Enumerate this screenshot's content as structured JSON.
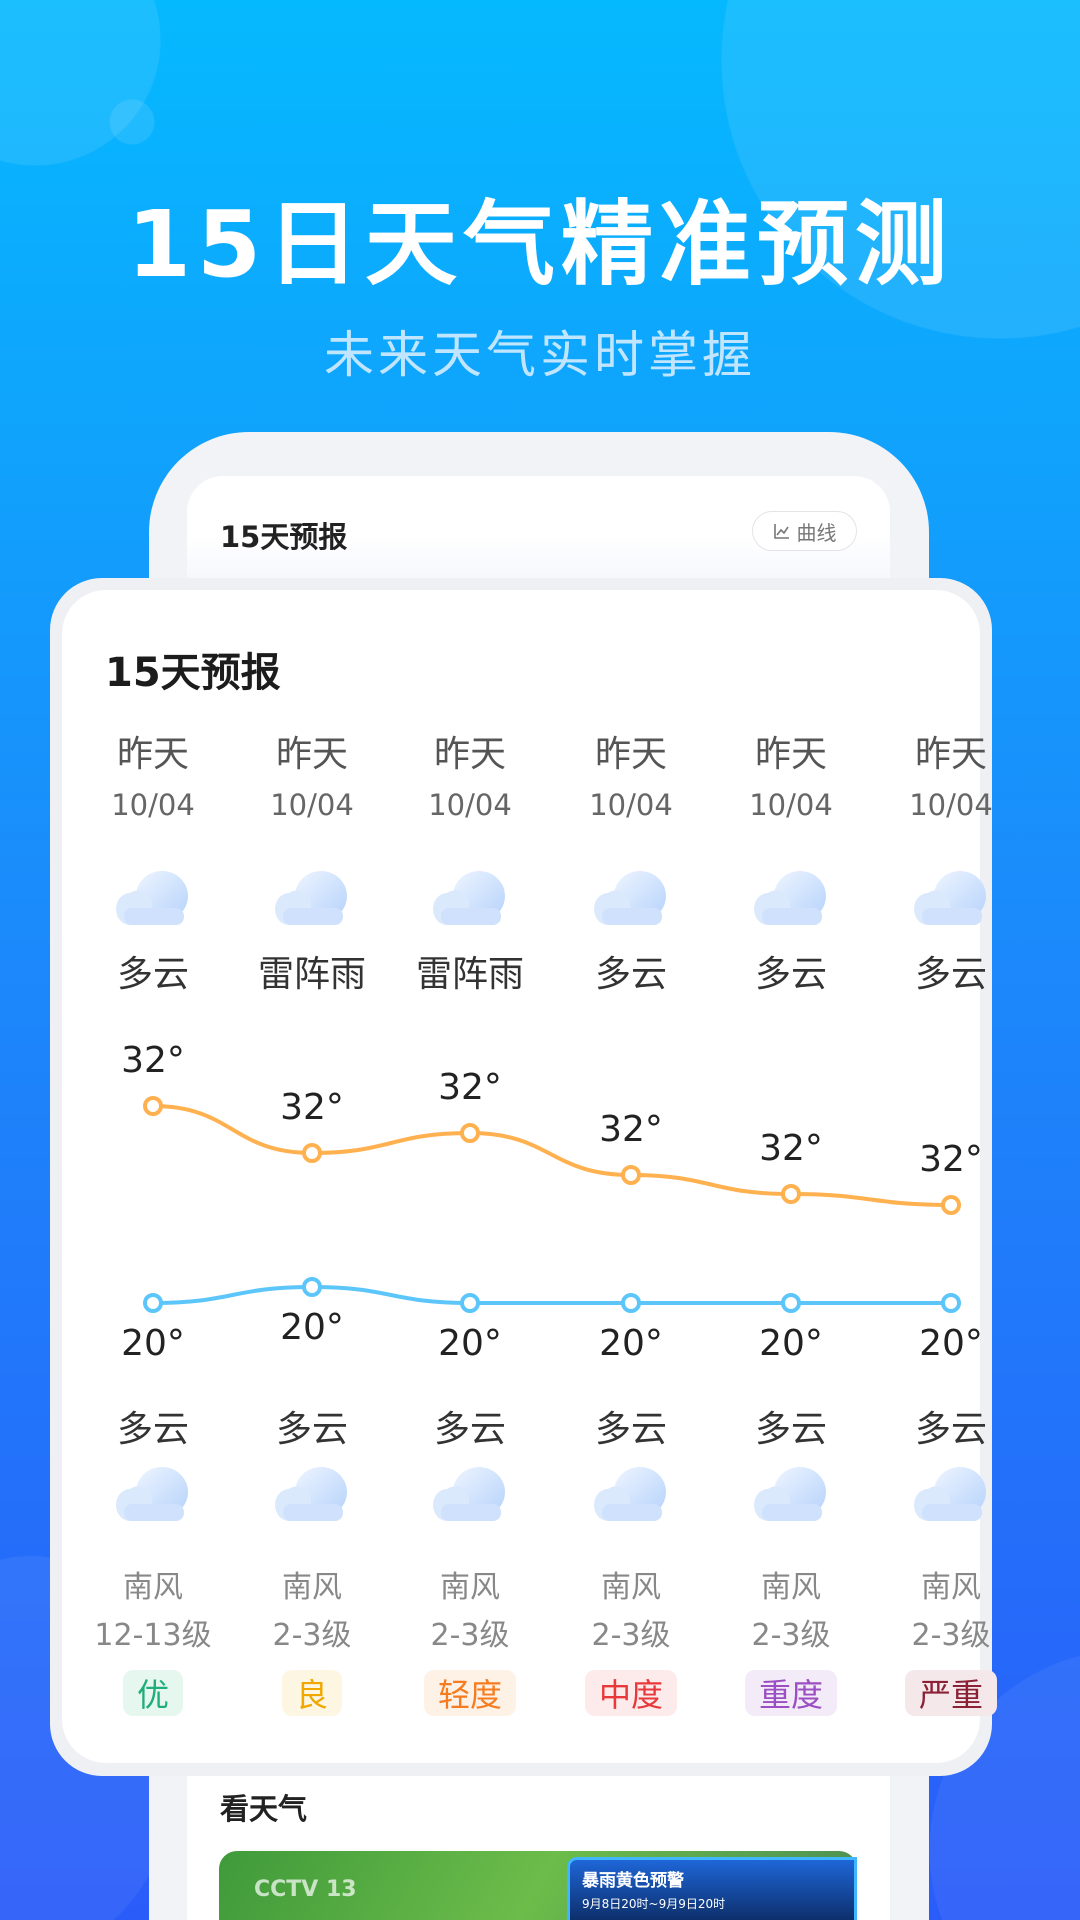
{
  "hero": {
    "title": "15日天气精准预测",
    "subtitle": "未来天气实时掌握"
  },
  "back_card": {
    "title": "15天预报",
    "curve_button": "曲线",
    "watch_title": "看天气",
    "video": {
      "channel": "CCTV 13",
      "banner_title": "暴雨黄色预警",
      "banner_time": "9月8日20时~9月9日20时"
    }
  },
  "forecast": {
    "title": "15天预报",
    "high_color": "#ffb04f",
    "low_color": "#5cc6fb",
    "days": [
      {
        "day": "昨天",
        "date": "10/04",
        "day_weather": "多云",
        "high": "32°",
        "low": "20°",
        "night_weather": "多云",
        "wind_dir": "南风",
        "wind_level": "12-13级",
        "aqi": "优",
        "aqi_color": "#1fae78",
        "aqi_bg": "#e6f7f0",
        "high_val": 32,
        "low_val": 20
      },
      {
        "day": "昨天",
        "date": "10/04",
        "day_weather": "雷阵雨",
        "high": "32°",
        "low": "20°",
        "night_weather": "多云",
        "wind_dir": "南风",
        "wind_level": "2-3级",
        "aqi": "良",
        "aqi_color": "#f0a800",
        "aqi_bg": "#fdf6e3",
        "high_val": 32,
        "low_val": 20
      },
      {
        "day": "昨天",
        "date": "10/04",
        "day_weather": "雷阵雨",
        "high": "32°",
        "low": "20°",
        "night_weather": "多云",
        "wind_dir": "南风",
        "wind_level": "2-3级",
        "aqi": "轻度",
        "aqi_color": "#f57c1f",
        "aqi_bg": "#fef1e6",
        "high_val": 32,
        "low_val": 20
      },
      {
        "day": "昨天",
        "date": "10/04",
        "day_weather": "多云",
        "high": "32°",
        "low": "20°",
        "night_weather": "多云",
        "wind_dir": "南风",
        "wind_level": "2-3级",
        "aqi": "中度",
        "aqi_color": "#e8383b",
        "aqi_bg": "#fdeaea",
        "high_val": 32,
        "low_val": 20
      },
      {
        "day": "昨天",
        "date": "10/04",
        "day_weather": "多云",
        "high": "32°",
        "low": "20°",
        "night_weather": "多云",
        "wind_dir": "南风",
        "wind_level": "2-3级",
        "aqi": "重度",
        "aqi_color": "#9b4fc2",
        "aqi_bg": "#f3ebf8",
        "high_val": 32,
        "low_val": 20
      },
      {
        "day": "昨天",
        "date": "10/04",
        "day_weather": "多云",
        "high": "32°",
        "low": "20°",
        "night_weather": "多云",
        "wind_dir": "南风",
        "wind_level": "2-3级",
        "aqi": "严重",
        "aqi_color": "#8a2135",
        "aqi_bg": "#f4e8eb",
        "high_val": 32,
        "low_val": 20
      }
    ]
  }
}
